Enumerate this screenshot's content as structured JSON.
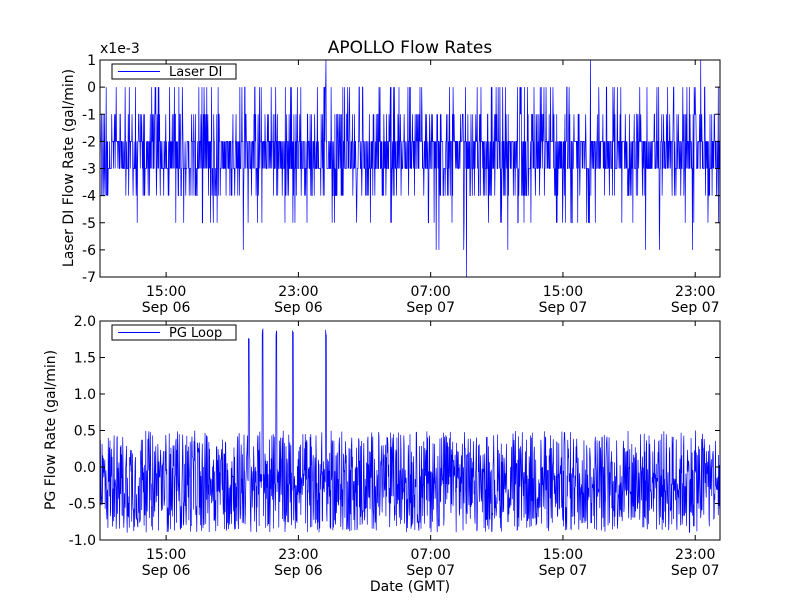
{
  "figure": {
    "title": "APOLLO Flow Rates",
    "xlabel": "Date (GMT)"
  },
  "chart_data": [
    {
      "type": "line",
      "name": "laser-di",
      "ylabel": "Laser DI Flow Rate (gal/min)",
      "offset_label": "x1e-3",
      "ylim": [
        -7,
        1
      ],
      "yticks": [
        1,
        0,
        -1,
        -2,
        -3,
        -4,
        -5,
        -6,
        -7
      ],
      "ytick_labels": [
        "1",
        "0",
        "-1",
        "-2",
        "-3",
        "-4",
        "-5",
        "-6",
        "-7"
      ],
      "xlim": [
        "2014-09-06T11:00",
        "2014-09-08T00:30"
      ],
      "xticks": [
        "2014-09-06T15:00",
        "2014-09-06T23:00",
        "2014-09-07T07:00",
        "2014-09-07T15:00",
        "2014-09-07T23:00"
      ],
      "xtick_labels": [
        [
          "15:00",
          "Sep 06"
        ],
        [
          "23:00",
          "Sep 06"
        ],
        [
          "07:00",
          "Sep 07"
        ],
        [
          "15:00",
          "Sep 07"
        ],
        [
          "23:00",
          "Sep 07"
        ]
      ],
      "legend": {
        "label": "Laser DI",
        "position": "top-left"
      },
      "color": "#0000ff",
      "series": [
        {
          "name": "Laser DI",
          "band": [
            -3,
            -2
          ],
          "frequent_values": [
            -4,
            -1
          ],
          "occasional_values": [
            -5,
            0
          ],
          "spikes": [
            {
              "x": "2014-09-06T19:40",
              "y": -6
            },
            {
              "x": "2014-09-07T00:40",
              "y": 1
            },
            {
              "x": "2014-09-07T07:20",
              "y": -6
            },
            {
              "x": "2014-09-07T07:30",
              "y": -6
            },
            {
              "x": "2014-09-07T09:00",
              "y": -6
            },
            {
              "x": "2014-09-07T09:10",
              "y": -7
            },
            {
              "x": "2014-09-07T11:40",
              "y": -6
            },
            {
              "x": "2014-09-07T16:40",
              "y": 1
            },
            {
              "x": "2014-09-07T20:00",
              "y": -6
            },
            {
              "x": "2014-09-07T20:50",
              "y": -6
            },
            {
              "x": "2014-09-07T22:50",
              "y": -6
            },
            {
              "x": "2014-09-07T23:20",
              "y": 1
            }
          ]
        }
      ]
    },
    {
      "type": "line",
      "name": "pg-loop",
      "ylabel": "PG Flow Rate (gal/min)",
      "ylim": [
        -1.0,
        2.0
      ],
      "yticks": [
        2.0,
        1.5,
        1.0,
        0.5,
        0.0,
        -0.5,
        -1.0
      ],
      "ytick_labels": [
        "2.0",
        "1.5",
        "1.0",
        "0.5",
        "0.0",
        "-0.5",
        "-1.0"
      ],
      "xlim": [
        "2014-09-06T11:00",
        "2014-09-08T00:30"
      ],
      "xticks": [
        "2014-09-06T15:00",
        "2014-09-06T23:00",
        "2014-09-07T07:00",
        "2014-09-07T15:00",
        "2014-09-07T23:00"
      ],
      "xtick_labels": [
        [
          "15:00",
          "Sep 06"
        ],
        [
          "23:00",
          "Sep 06"
        ],
        [
          "07:00",
          "Sep 07"
        ],
        [
          "15:00",
          "Sep 07"
        ],
        [
          "23:00",
          "Sep 07"
        ]
      ],
      "legend": {
        "label": "PG Loop",
        "position": "top-left"
      },
      "color": "#0000ff",
      "series": [
        {
          "name": "PG Loop",
          "center": -0.2,
          "range": [
            -0.9,
            0.5
          ],
          "spikes": [
            {
              "x": "2014-09-06T20:00",
              "y": 1.8
            },
            {
              "x": "2014-09-06T20:50",
              "y": 1.9
            },
            {
              "x": "2014-09-06T21:40",
              "y": 1.9
            },
            {
              "x": "2014-09-06T22:40",
              "y": 1.9
            },
            {
              "x": "2014-09-07T00:40",
              "y": 1.9
            }
          ]
        }
      ]
    }
  ]
}
